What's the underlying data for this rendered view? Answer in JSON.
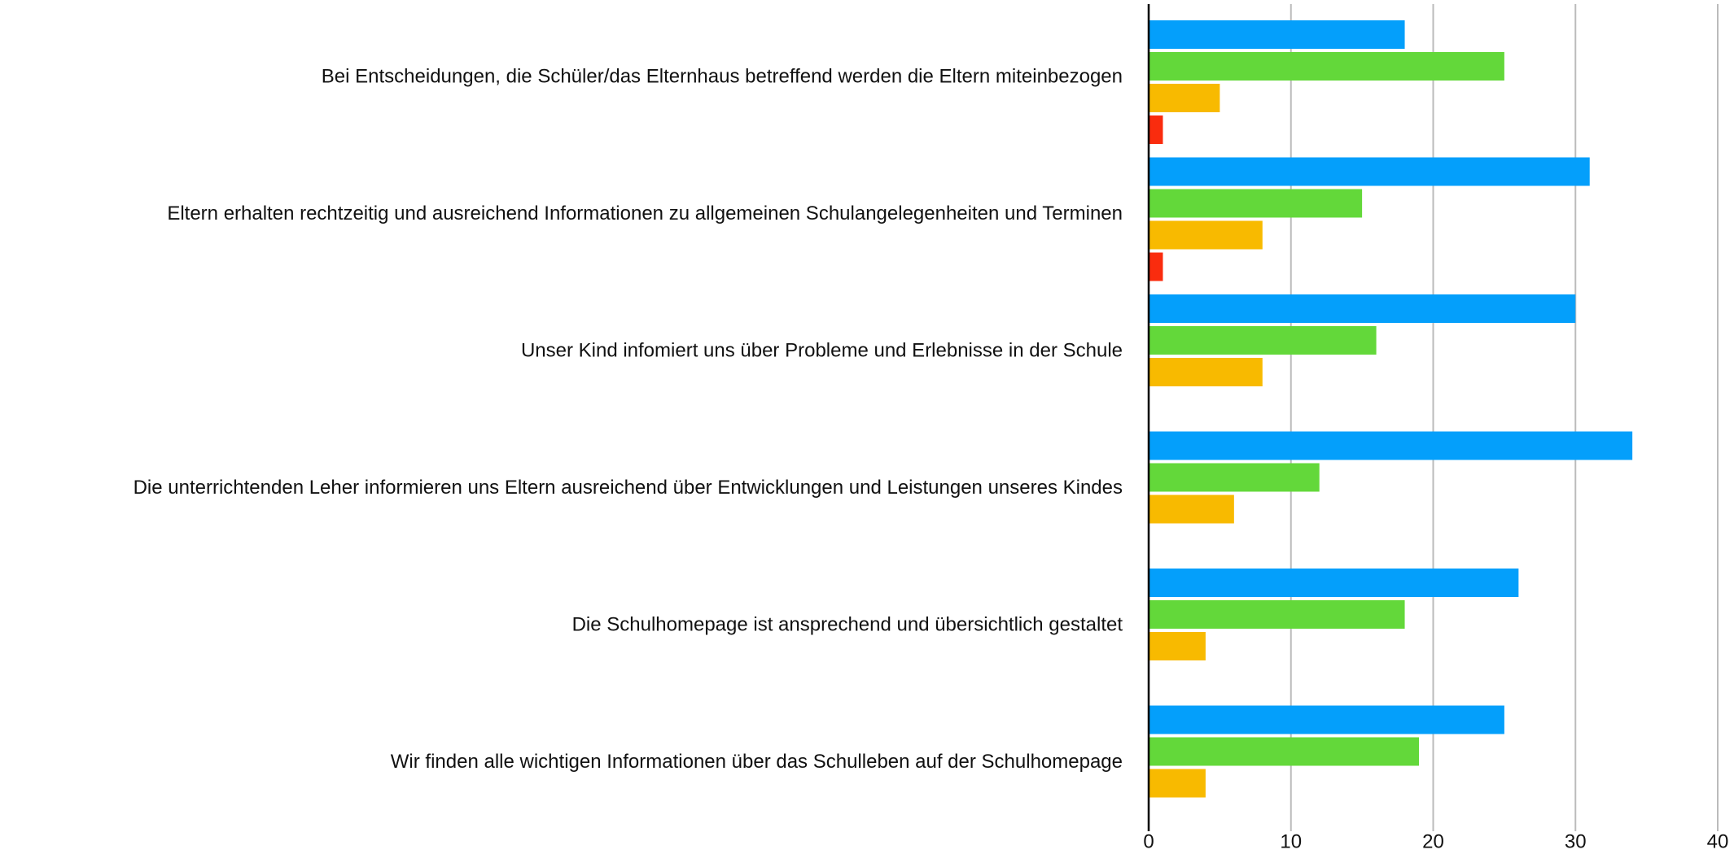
{
  "chart_data": {
    "type": "hbar",
    "categories": [
      "Bei Entscheidungen, die Schüler/das Elternhaus betreffend werden die Eltern miteinbezogen",
      "Eltern erhalten rechtzeitig und ausreichend Informationen zu allgemeinen Schulangelegenheiten und Terminen",
      "Unser Kind infomiert uns über Probleme und Erlebnisse in der Schule",
      "Die unterrichtenden Leher informieren uns Eltern ausreichend über Entwicklungen und Leistungen unseres Kindes",
      "Die Schulhomepage ist ansprechend und übersichtlich gestaltet",
      "Wir finden alle wichtigen Informationen über das Schulleben auf der Schulhomepage"
    ],
    "series": [
      {
        "color": "#049ffb",
        "values": [
          18,
          31,
          30,
          34,
          26,
          25
        ]
      },
      {
        "color": "#63d83a",
        "values": [
          25,
          15,
          16,
          12,
          18,
          19
        ]
      },
      {
        "color": "#f8ba00",
        "values": [
          5,
          8,
          8,
          6,
          4,
          4
        ]
      },
      {
        "color": "#fa2c0e",
        "values": [
          1,
          1,
          null,
          null,
          null,
          null
        ]
      }
    ],
    "xlim": [
      0,
      40
    ],
    "xticks": [
      0,
      10,
      20,
      30,
      40
    ],
    "grid": true
  }
}
